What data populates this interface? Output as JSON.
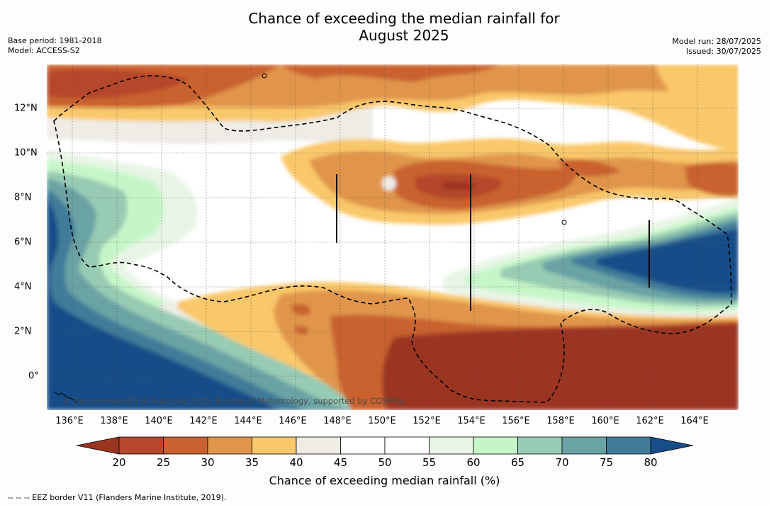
{
  "title_line1": "Chance of exceeding the median rainfall for",
  "title_line2": "August 2025",
  "meta": {
    "base_period": "Base period: 1981-2018",
    "model": "Model: ACCESS-S2",
    "model_run": "Model run: 28/07/2025",
    "issued": "Issued: 30/07/2025"
  },
  "copyright": "© Commonwealth of Australia 2025, Bureau of Meteorology, supported by COSPPac",
  "lon_ticks": [
    "136°E",
    "138°E",
    "140°E",
    "142°E",
    "144°E",
    "146°E",
    "148°E",
    "150°E",
    "152°E",
    "154°E",
    "156°E",
    "158°E",
    "160°E",
    "162°E",
    "164°E"
  ],
  "lat_ticks": [
    "12°N",
    "10°N",
    "8°N",
    "6°N",
    "4°N",
    "2°N",
    "0°"
  ],
  "colorbar": {
    "labels": [
      "20",
      "25",
      "30",
      "35",
      "40",
      "45",
      "50",
      "55",
      "60",
      "65",
      "70",
      "75",
      "80"
    ],
    "colors": [
      "#9b3520",
      "#b5472a",
      "#c9622f",
      "#e0954b",
      "#f9c86a",
      "#efece6",
      "#ffffff",
      "#ffffff",
      "#e8f5e6",
      "#c6f6c8",
      "#98cbb3",
      "#6aa3a4",
      "#417b9a",
      "#174d88"
    ],
    "title": "Chance of exceeding median rainfall (%)"
  },
  "footnote": "--  --  -- EEZ border V11 (Flanders Marine Institute, 2019).",
  "legend_colors": {
    "below_20": "#9b3520",
    "above_80": "#174d88"
  }
}
